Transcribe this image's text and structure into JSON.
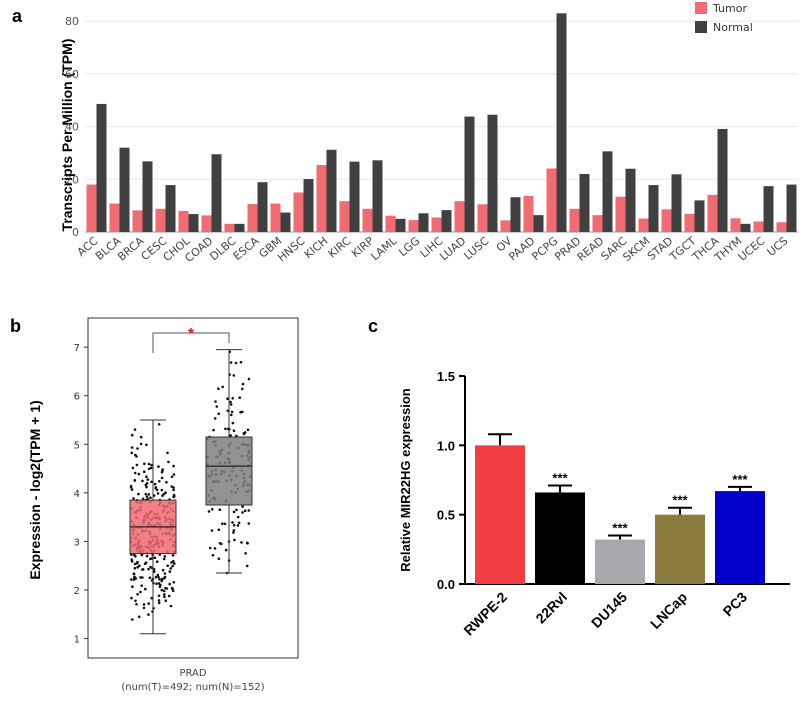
{
  "panels": {
    "a": "a",
    "b": "b",
    "c": "c"
  },
  "chart_data": [
    {
      "type": "bar",
      "panel": "a",
      "title": "",
      "xlabel": "",
      "ylabel": "Transcripts Per Million (TPM)",
      "ylim": [
        0,
        85
      ],
      "yticks": [
        0,
        20,
        40,
        60,
        80
      ],
      "categories": [
        "ACC",
        "BLCA",
        "BRCA",
        "CESC",
        "CHOL",
        "COAD",
        "DLBC",
        "ESCA",
        "GBM",
        "HNSC",
        "KICH",
        "KIRC",
        "KIRP",
        "LAML",
        "LGG",
        "LIHC",
        "LUAD",
        "LUSC",
        "OV",
        "PAAD",
        "PCPG",
        "PRAD",
        "READ",
        "SARC",
        "SKCM",
        "STAD",
        "TGCT",
        "THCA",
        "THYM",
        "UCEC",
        "UCS"
      ],
      "series": [
        {
          "name": "Tumor",
          "color": "#f06b72",
          "values": [
            18.0,
            10.8,
            8.2,
            8.8,
            8.0,
            6.3,
            3.1,
            10.6,
            10.8,
            15.0,
            25.4,
            11.7,
            8.8,
            6.2,
            4.5,
            5.5,
            11.7,
            10.5,
            4.4,
            13.7,
            24.1,
            8.8,
            6.4,
            13.4,
            5.1,
            8.6,
            6.9,
            14.1,
            5.2,
            4.0,
            3.7
          ]
        },
        {
          "name": "Normal",
          "color": "#404040",
          "values": [
            48.6,
            32.0,
            26.8,
            17.8,
            6.8,
            29.5,
            3.1,
            18.9,
            7.4,
            20.1,
            31.2,
            26.7,
            27.2,
            5.0,
            7.1,
            8.3,
            43.8,
            44.5,
            13.2,
            6.4,
            83.0,
            22.0,
            30.6,
            24.0,
            17.8,
            21.9,
            12.0,
            39.1,
            3.1,
            17.4,
            18.0
          ]
        }
      ],
      "legend": {
        "position": "top-right",
        "labels": [
          "Tumor",
          "Normal"
        ]
      }
    },
    {
      "type": "box",
      "panel": "b",
      "ylabel": "Expression - log2(TPM + 1)",
      "ylim": [
        0.6,
        7.6
      ],
      "yticks": [
        1,
        2,
        3,
        4,
        5,
        6,
        7
      ],
      "category": "PRAD",
      "subtitle": "(num(T)=492; num(N)=152)",
      "significance": "*",
      "groups": [
        {
          "name": "Tumor",
          "n": 492,
          "color": "#f06b72",
          "whisker_low": 1.1,
          "q1": 2.75,
          "median": 3.3,
          "q3": 3.85,
          "whisker_high": 5.5,
          "min": 0.9,
          "max": 6.15
        },
        {
          "name": "Normal",
          "n": 152,
          "color": "#7f7f7f",
          "whisker_low": 2.35,
          "q1": 3.75,
          "median": 4.55,
          "q3": 5.15,
          "whisker_high": 6.95,
          "min": 2.35,
          "max": 6.95
        }
      ]
    },
    {
      "type": "bar",
      "panel": "c",
      "ylabel": "Relative MIR22HG expression",
      "ylim": [
        0,
        1.5
      ],
      "yticks": [
        "0.0",
        "0.5",
        "1.0",
        "1.5"
      ],
      "categories": [
        "RWPE-2",
        "22Rvl",
        "DU145",
        "LNCap",
        "PC3"
      ],
      "values": [
        1.0,
        0.66,
        0.32,
        0.5,
        0.67
      ],
      "errors": [
        0.08,
        0.05,
        0.03,
        0.05,
        0.03
      ],
      "colors": [
        "#f33d43",
        "#000000",
        "#a8a8ac",
        "#8a7b3c",
        "#0000c8"
      ],
      "annotations": [
        "",
        "***",
        "***",
        "***",
        "***"
      ]
    }
  ]
}
